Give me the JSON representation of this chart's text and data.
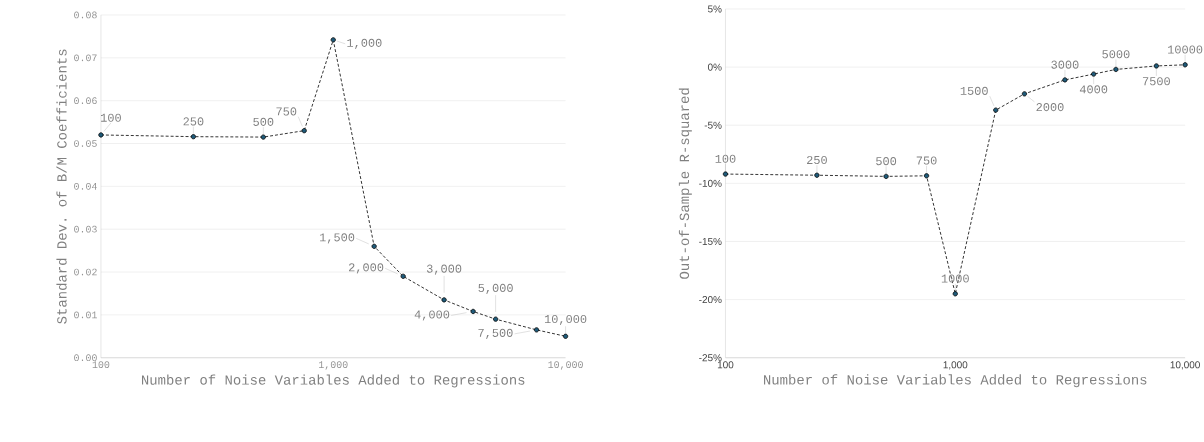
{
  "chart_data": [
    {
      "type": "line",
      "xlabel": "Number of Noise Variables Added to Regressions",
      "ylabel": "Standard Dev. of B/M Coefficients",
      "x": [
        100,
        250,
        500,
        750,
        1000,
        1500,
        2000,
        3000,
        4000,
        5000,
        7500,
        10000
      ],
      "values": [
        0.052,
        0.0516,
        0.0515,
        0.053,
        0.0742,
        0.026,
        0.019,
        0.0135,
        0.0108,
        0.009,
        0.0065,
        0.005
      ],
      "color": "#1f5b7a",
      "log": "x",
      "grid": "y",
      "marker": "circle",
      "line_style": "dashed",
      "xlim": [
        100,
        10000
      ],
      "xticks": [
        {
          "value": 100,
          "label": "100"
        },
        {
          "value": 1000,
          "label": "1,000"
        },
        {
          "value": 10000,
          "label": "10,000"
        }
      ],
      "ylim": [
        0,
        0.08
      ],
      "yticks": [
        {
          "value": 0,
          "label": "0.00"
        },
        {
          "value": 0.01,
          "label": "0.01"
        },
        {
          "value": 0.02,
          "label": "0.02"
        },
        {
          "value": 0.03,
          "label": "0.03"
        },
        {
          "value": 0.04,
          "label": "0.04"
        },
        {
          "value": 0.05,
          "label": "0.05"
        },
        {
          "value": 0.06,
          "label": "0.06"
        },
        {
          "value": 0.07,
          "label": "0.07"
        },
        {
          "value": 0.08,
          "label": "0.08"
        }
      ],
      "annotations": [
        {
          "text": "100",
          "x": 100,
          "y": 0.052
        },
        {
          "text": "250",
          "x": 250,
          "y": 0.0516
        },
        {
          "text": "500",
          "x": 500,
          "y": 0.0515
        },
        {
          "text": "750",
          "x": 750,
          "y": 0.053
        },
        {
          "text": "1,000",
          "x": 1000,
          "y": 0.0742
        },
        {
          "text": "1,500",
          "x": 1500,
          "y": 0.026
        },
        {
          "text": "2,000",
          "x": 2000,
          "y": 0.019
        },
        {
          "text": "3,000",
          "x": 3000,
          "y": 0.0135
        },
        {
          "text": "4,000",
          "x": 4000,
          "y": 0.0108
        },
        {
          "text": "5,000",
          "x": 5000,
          "y": 0.009
        },
        {
          "text": "7,500",
          "x": 7500,
          "y": 0.0065
        },
        {
          "text": "10,000",
          "x": 10000,
          "y": 0.005
        }
      ]
    },
    {
      "type": "line",
      "xlabel": "Number of Noise Variables Added to Regressions",
      "ylabel": "Out-of-Sample R-squared",
      "x": [
        100,
        250,
        500,
        750,
        1000,
        1500,
        2000,
        3000,
        4000,
        5000,
        7500,
        10000
      ],
      "values": [
        -9.2,
        -9.3,
        -9.4,
        -9.35,
        -19.5,
        -3.7,
        -2.3,
        -1.1,
        -0.6,
        -0.2,
        0.1,
        0.2
      ],
      "color": "#1f5b7a",
      "log": "x",
      "grid": "y",
      "marker": "circle",
      "line_style": "dashed",
      "xlim": [
        100,
        10000
      ],
      "xticks": [
        {
          "value": 100,
          "label": "100"
        },
        {
          "value": 1000,
          "label": "1,000"
        },
        {
          "value": 10000,
          "label": "10,000"
        }
      ],
      "ylim": [
        -25,
        5
      ],
      "yticks": [
        {
          "value": -25,
          "label": "-25%"
        },
        {
          "value": -20,
          "label": "-20%"
        },
        {
          "value": -15,
          "label": "-15%"
        },
        {
          "value": -10,
          "label": "-10%"
        },
        {
          "value": -5,
          "label": "-5%"
        },
        {
          "value": 0,
          "label": "0%"
        },
        {
          "value": 5,
          "label": "5%"
        }
      ],
      "annotations": [
        {
          "text": "100",
          "x": 100,
          "y": -9.2
        },
        {
          "text": "250",
          "x": 250,
          "y": -9.3
        },
        {
          "text": "500",
          "x": 500,
          "y": -9.4
        },
        {
          "text": "750",
          "x": 750,
          "y": -9.35
        },
        {
          "text": "1000",
          "x": 1000,
          "y": -19.5
        },
        {
          "text": "1500",
          "x": 1500,
          "y": -3.7
        },
        {
          "text": "2000",
          "x": 2000,
          "y": -2.3
        },
        {
          "text": "3000",
          "x": 3000,
          "y": -1.1
        },
        {
          "text": "4000",
          "x": 4000,
          "y": -0.6
        },
        {
          "text": "5000",
          "x": 5000,
          "y": -0.2
        },
        {
          "text": "7500",
          "x": 7500,
          "y": 0.1
        },
        {
          "text": "10000",
          "x": 10000,
          "y": 0.2
        }
      ]
    }
  ]
}
